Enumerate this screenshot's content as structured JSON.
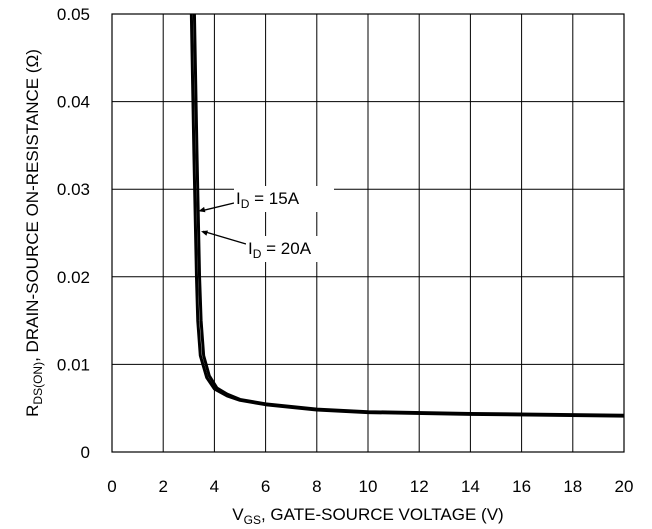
{
  "chart_data": {
    "type": "line",
    "title": "",
    "xlabel": {
      "main": "V",
      "sub": "GS",
      "rest": ", GATE-SOURCE VOLTAGE (V)"
    },
    "ylabel": {
      "main": "R",
      "sub": "DS(ON)",
      "rest": ", DRAIN-SOURCE ON-RESISTANCE (Ω)"
    },
    "xlim": [
      0,
      20
    ],
    "ylim": [
      0,
      0.05
    ],
    "xticks": [
      0,
      2,
      4,
      6,
      8,
      10,
      12,
      14,
      16,
      18,
      20
    ],
    "xtick_labels": [
      "0",
      "2",
      "4",
      "6",
      "8",
      "10",
      "12",
      "14",
      "16",
      "18",
      "20"
    ],
    "yticks": [
      0,
      0.01,
      0.02,
      0.03,
      0.04,
      0.05
    ],
    "ytick_labels": [
      "0",
      "0.01",
      "0.02",
      "0.03",
      "0.04",
      "0.05"
    ],
    "grid": true,
    "series": [
      {
        "values": [
          [
            3.1,
            0.05
          ],
          [
            3.15,
            0.042
          ],
          [
            3.2,
            0.034
          ],
          [
            3.25,
            0.027
          ],
          [
            3.3,
            0.02
          ],
          [
            3.35,
            0.015
          ],
          [
            3.45,
            0.011
          ],
          [
            3.7,
            0.0085
          ],
          [
            4.0,
            0.0072
          ],
          [
            4.5,
            0.0064
          ],
          [
            5.0,
            0.0059
          ],
          [
            6.0,
            0.0054
          ],
          [
            8.0,
            0.0048
          ],
          [
            10.0,
            0.0045
          ],
          [
            14.0,
            0.0043
          ],
          [
            20.0,
            0.0041
          ]
        ]
      },
      {
        "values": [
          [
            3.22,
            0.05
          ],
          [
            3.27,
            0.042
          ],
          [
            3.32,
            0.034
          ],
          [
            3.37,
            0.027
          ],
          [
            3.42,
            0.02
          ],
          [
            3.48,
            0.015
          ],
          [
            3.58,
            0.011
          ],
          [
            3.8,
            0.0087
          ],
          [
            4.1,
            0.0073
          ],
          [
            4.5,
            0.0066
          ],
          [
            5.0,
            0.006
          ],
          [
            6.0,
            0.0055
          ],
          [
            8.0,
            0.0049
          ],
          [
            10.0,
            0.0046
          ],
          [
            14.0,
            0.0044
          ],
          [
            20.0,
            0.0042
          ]
        ]
      }
    ],
    "annotations": [
      {
        "main": "I",
        "sub": "D",
        "rest": " = 15A",
        "x": 3.3,
        "y": 0.0275
      },
      {
        "main": "I",
        "sub": "D",
        "rest": " = 20A",
        "x": 3.4,
        "y": 0.0252
      }
    ]
  }
}
